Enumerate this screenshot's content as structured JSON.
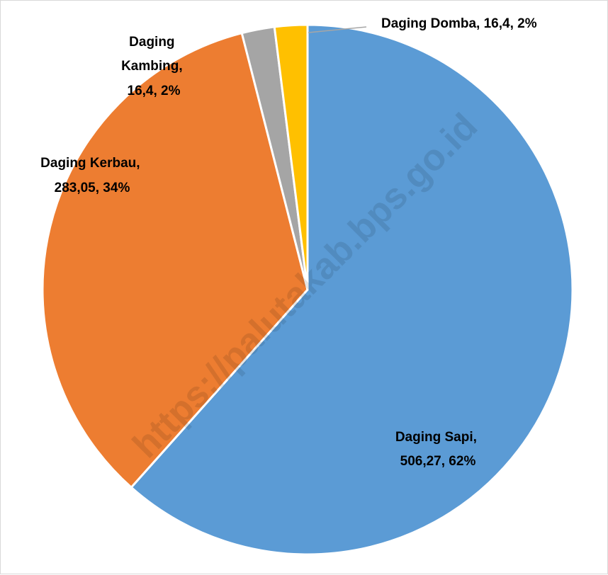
{
  "chart_data": {
    "type": "pie",
    "title": "",
    "slices": [
      {
        "name": "Daging Sapi",
        "value": 506.27,
        "value_label": "506,27",
        "percent_label": "62%",
        "color": "#5b9bd5"
      },
      {
        "name": "Daging Kerbau",
        "value": 283.05,
        "value_label": "283,05",
        "percent_label": "34%",
        "color": "#ed7d31"
      },
      {
        "name": "Daging Kambing",
        "value": 16.4,
        "value_label": "16,4",
        "percent_label": "2%",
        "color": "#a5a5a5"
      },
      {
        "name": "Daging Domba",
        "value": 16.4,
        "value_label": "16,4",
        "percent_label": "2%",
        "color": "#ffc000"
      }
    ],
    "data_labels": {
      "sapi": [
        "Daging Sapi,",
        "506,27, 62%"
      ],
      "kerbau": [
        "Daging Kerbau,",
        "283,05, 34%"
      ],
      "kambing": [
        "Daging",
        "Kambing,",
        "16,4, 2%"
      ],
      "domba": [
        "Daging Domba, 16,4, 2%"
      ]
    },
    "legend": "none",
    "start_angle": "12 o'clock, clockwise"
  },
  "watermark": "https://palutakab.bps.go.id"
}
